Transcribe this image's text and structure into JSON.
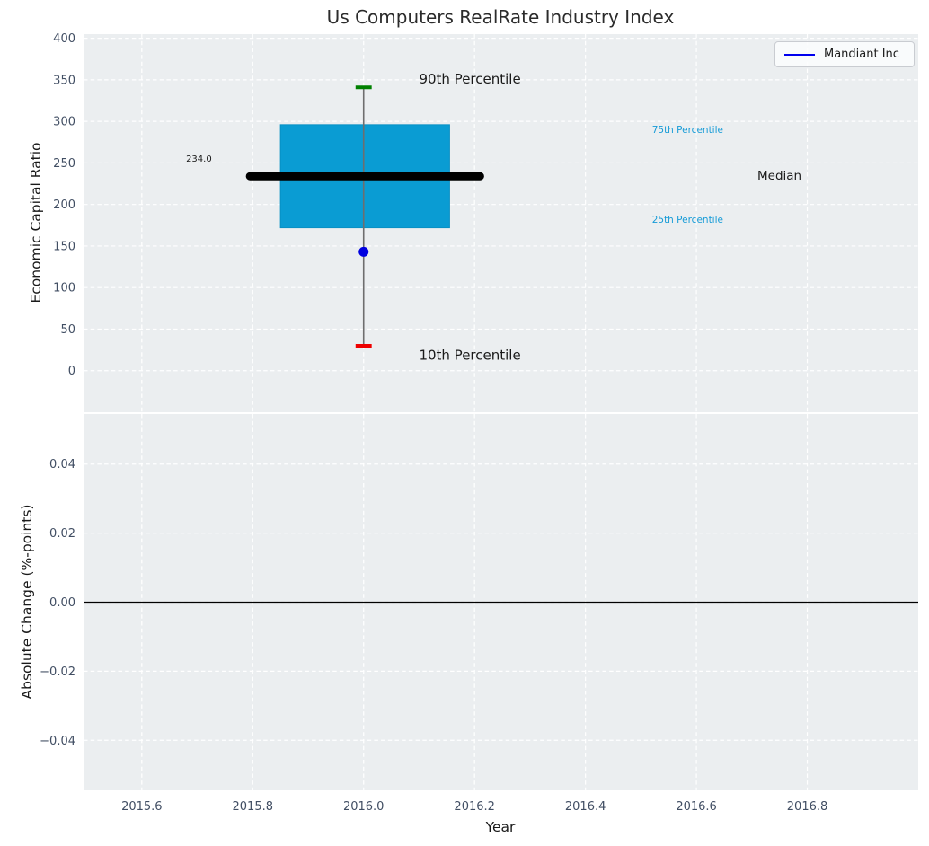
{
  "colors": {
    "panel_bg": "#ebeef0",
    "grid": "#ffffff",
    "box_fill": "#0a9cd3",
    "box_edge": "#0890c4",
    "whisker": "#6e6e6e",
    "cap_top_green": "#008000",
    "cap_bottom_red": "#ee0000",
    "median_black": "#000000",
    "company_blue": "#0000e0",
    "tick_text": "#414e63",
    "annotation_black": "#1a1a1a",
    "annotation_cyan": "#169bd7",
    "zero_line": "#000000"
  },
  "chart_data": {
    "type": "boxplot",
    "title": "Us Computers RealRate Industry Index",
    "xlabel": "Year",
    "xlim": [
      2015.495,
      2017.0
    ],
    "xticks": [
      2015.6,
      2015.8,
      2016.0,
      2016.2,
      2016.4,
      2016.6,
      2016.8
    ],
    "xtick_labels": [
      "2015.6",
      "2015.8",
      "2016.0",
      "2016.2",
      "2016.4",
      "2016.6",
      "2016.8"
    ],
    "legend": {
      "label": "Mandiant Inc",
      "position": "upper right"
    },
    "grid": "white dashed on light gray panels",
    "top": {
      "ylabel": "Economic Capital Ratio",
      "ylim": [
        -50,
        405
      ],
      "yticks": [
        0,
        50,
        100,
        150,
        200,
        250,
        300,
        350,
        400
      ],
      "ytick_labels": [
        "0",
        "50",
        "100",
        "150",
        "200",
        "250",
        "300",
        "350",
        "400"
      ],
      "box": {
        "year": 2016.0,
        "x_left": 2015.85,
        "x_right": 2016.155,
        "q1": 172,
        "q3": 296,
        "median": 234.0,
        "median_label": "234.0",
        "median_x_left": 2015.795,
        "median_x_right": 2016.21,
        "p10": 30,
        "p90": 341,
        "cap_halfwidth": 0.0145,
        "company_point": {
          "name": "Mandiant Inc",
          "x": 2016.0,
          "y": 143
        }
      },
      "annotations": [
        {
          "text": "90th Percentile",
          "x": 2016.1,
          "y": 351,
          "color": "#1a1a1a",
          "size": 15,
          "anchor": "start"
        },
        {
          "text": "10th Percentile",
          "x": 2016.1,
          "y": 19,
          "color": "#1a1a1a",
          "size": 15,
          "anchor": "start"
        },
        {
          "text": "75th Percentile",
          "x": 2016.52,
          "y": 290,
          "color": "#169bd7",
          "size": 10.5,
          "anchor": "start"
        },
        {
          "text": "25th Percentile",
          "x": 2016.52,
          "y": 182,
          "color": "#169bd7",
          "size": 10.5,
          "anchor": "start"
        },
        {
          "text": "Median",
          "x": 2016.71,
          "y": 235,
          "color": "#1a1a1a",
          "size": 13.5,
          "anchor": "start"
        },
        {
          "text": "234.0",
          "x": 2015.703,
          "y": 255,
          "color": "#1a1a1a",
          "size": 10,
          "anchor": "middle"
        }
      ]
    },
    "bottom": {
      "ylabel": "Absolute Change (%-points)",
      "ylim": [
        -0.0545,
        0.0545
      ],
      "yticks": [
        0.04,
        0.02,
        0.0,
        -0.02,
        -0.04
      ],
      "ytick_labels": [
        "0.04",
        "0.02",
        "0.00",
        "−0.02",
        "−0.04"
      ],
      "zero_line_y": 0.0
    }
  }
}
